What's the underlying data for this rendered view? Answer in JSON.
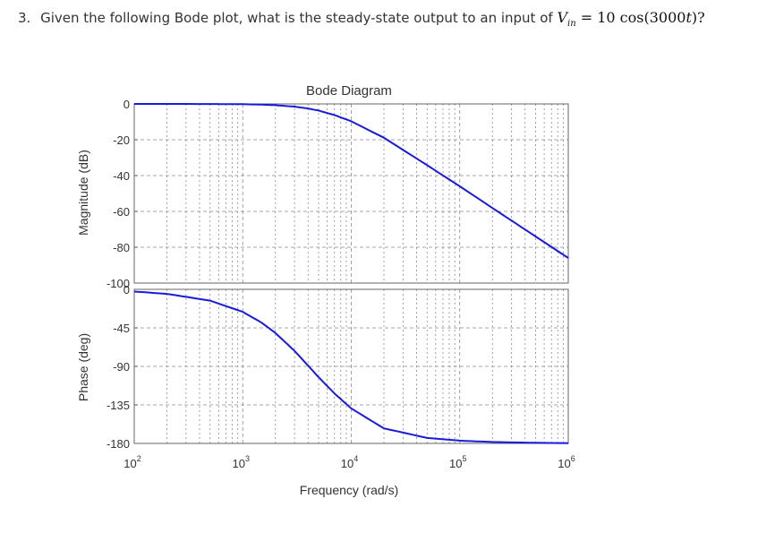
{
  "question": {
    "number": "3.",
    "text": "Given the following Bode plot, what is the steady-state output to an input of",
    "math_var": "V",
    "math_sub": "in",
    "math_rhs": "= 10 cos(3000",
    "math_t": "t",
    "math_tail": ")?"
  },
  "chart_data": {
    "type": "line",
    "title": "Bode Diagram",
    "xlabel": "Frequency (rad/s)",
    "xscale": "log",
    "xlim": [
      100,
      1000000
    ],
    "x_ticks": [
      {
        "base": "10",
        "exp": "2"
      },
      {
        "base": "10",
        "exp": "3"
      },
      {
        "base": "10",
        "exp": "4"
      },
      {
        "base": "10",
        "exp": "5"
      },
      {
        "base": "10",
        "exp": "6"
      }
    ],
    "grid": true,
    "line_color": "#1a1adb",
    "panels": [
      {
        "name": "magnitude",
        "ylabel": "Magnitude (dB)",
        "ylim": [
          -100,
          0
        ],
        "y_ticks": [
          "0",
          "-20",
          "-40",
          "-60",
          "-80",
          "-100"
        ],
        "x": [
          100,
          200,
          500,
          1000,
          1500,
          2000,
          3000,
          4000,
          5000,
          7000,
          10000,
          20000,
          50000,
          100000,
          200000,
          500000,
          1000000
        ],
        "y": [
          0,
          -0.01,
          -0.04,
          -0.17,
          -0.4,
          -0.69,
          -1.51,
          -2.55,
          -3.72,
          -6.22,
          -9.7,
          -18.9,
          -34.2,
          -46.0,
          -58.1,
          -74.0,
          -86.0
        ]
      },
      {
        "name": "phase",
        "ylabel": "Phase (deg)",
        "ylim": [
          -180,
          0
        ],
        "y_ticks": [
          "0",
          "-45",
          "-90",
          "-135",
          "-180"
        ],
        "x": [
          100,
          200,
          500,
          1000,
          1500,
          2000,
          3000,
          4000,
          5000,
          7000,
          10000,
          20000,
          50000,
          100000,
          200000,
          500000,
          1000000
        ],
        "y": [
          -2.6,
          -5.3,
          -13.2,
          -26.3,
          -39.1,
          -51.0,
          -71.9,
          -89.1,
          -102.7,
          -121.6,
          -139.2,
          -162.4,
          -173.6,
          -176.8,
          -178.3,
          -179.3,
          -179.7
        ]
      }
    ]
  }
}
